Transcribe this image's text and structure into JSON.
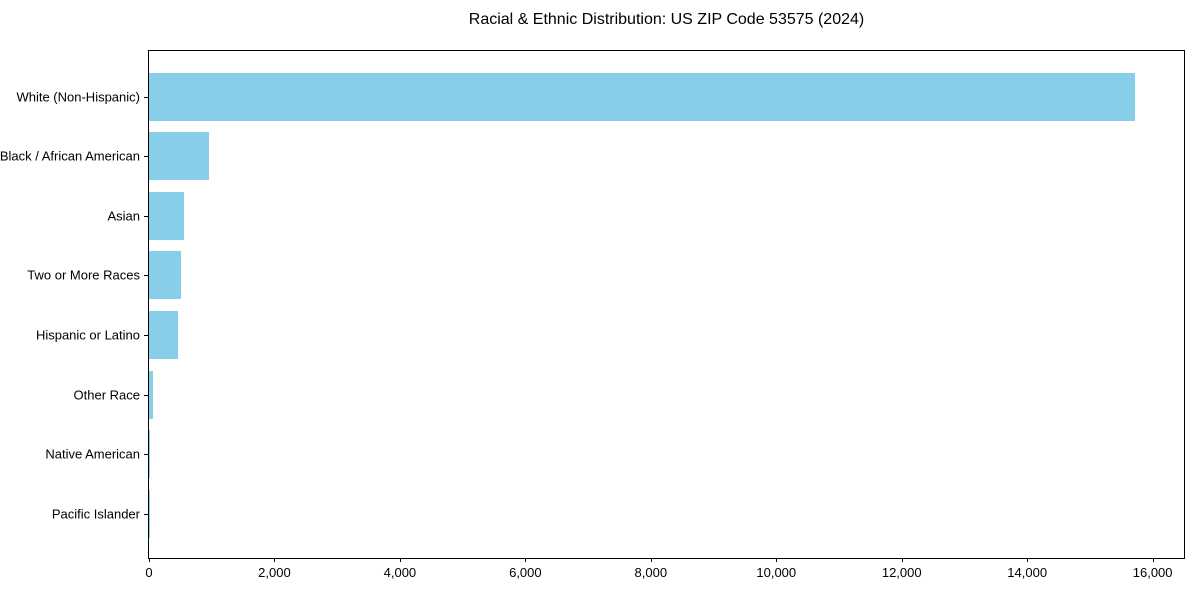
{
  "chart_data": {
    "type": "bar",
    "orientation": "horizontal",
    "title": "Racial & Ethnic Distribution: US ZIP Code 53575 (2024)",
    "categories": [
      "White (Non-Hispanic)",
      "Black / African American",
      "Asian",
      "Two or More Races",
      "Hispanic or Latino",
      "Other Race",
      "Native American",
      "Pacific Islander"
    ],
    "values": [
      15715,
      950,
      550,
      515,
      460,
      60,
      15,
      4
    ],
    "xlabel": "",
    "ylabel": "",
    "xlim": [
      0,
      16500
    ],
    "xticks": [
      0,
      2000,
      4000,
      6000,
      8000,
      10000,
      12000,
      14000,
      16000
    ],
    "bar_color": "#87CEEB",
    "frame": true,
    "grid": false,
    "legend": null
  }
}
